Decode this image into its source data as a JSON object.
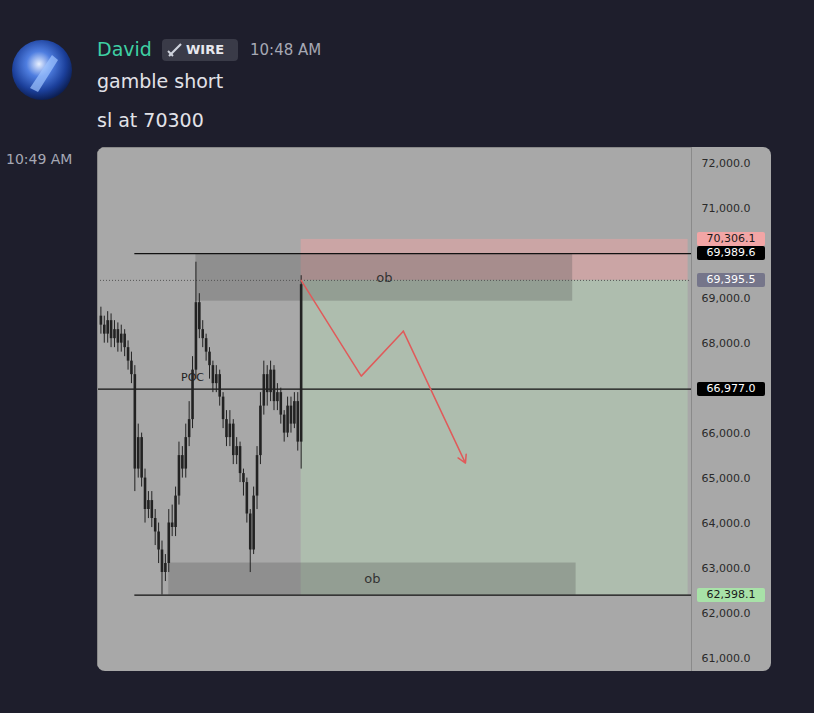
{
  "message": {
    "author": "David",
    "badge": "WIRE",
    "time": "10:48 AM",
    "lines": [
      "gamble short",
      "sl at 70300"
    ],
    "attachment_time": "10:49 AM"
  },
  "chart_data": {
    "type": "candlestick",
    "color": "#222222",
    "xlim": [
      -1,
      174
    ],
    "ylim": [
      60700,
      72350
    ],
    "yticks": [
      {
        "value": 61000,
        "label": "61,000.0"
      },
      {
        "value": 62000,
        "label": "62,000.0"
      },
      {
        "value": 63000,
        "label": "63,000.0"
      },
      {
        "value": 64000,
        "label": "64,000.0"
      },
      {
        "value": 65000,
        "label": "65,000.0"
      },
      {
        "value": 66000,
        "label": "66,000.0"
      },
      {
        "value": 68000,
        "label": "68,000.0"
      },
      {
        "value": 69000,
        "label": "69,000.0"
      },
      {
        "value": 71000,
        "label": "71,000.0"
      },
      {
        "value": 72000,
        "label": "72,000.0"
      }
    ],
    "tick_labels": "y",
    "grid": false,
    "candles": {
      "x": [
        0,
        1,
        2,
        3,
        4,
        5,
        6,
        7,
        8,
        9,
        10,
        11,
        12,
        13,
        14,
        15,
        16,
        17,
        18,
        19,
        20,
        21,
        22,
        23,
        24,
        25,
        26,
        27,
        28,
        29,
        30,
        31,
        32,
        33,
        34,
        35,
        36,
        37,
        38,
        39,
        40,
        41,
        42,
        43,
        44,
        45,
        46,
        47,
        48,
        49,
        50,
        51,
        52,
        53,
        54,
        55,
        56,
        57,
        58,
        59
      ],
      "open": [
        68600,
        68400,
        68200,
        68500,
        68100,
        68300,
        68000,
        68200,
        67900,
        67600,
        67300,
        65200,
        65900,
        65000,
        64300,
        64500,
        64100,
        63800,
        63400,
        62900,
        63100,
        64000,
        63900,
        64600,
        65500,
        65200,
        65900,
        66300,
        67400,
        68900,
        68300,
        68100,
        67800,
        67500,
        67100,
        67300,
        66800,
        66300,
        65900,
        66200,
        65500,
        65700,
        65100,
        64900,
        64200,
        63400,
        64600,
        65500,
        66600,
        67300,
        66900,
        67400,
        66700,
        66900,
        66400,
        66000,
        66600,
        66200,
        66700,
        65800
      ],
      "high": [
        68800,
        68600,
        68700,
        68650,
        68500,
        68450,
        68400,
        68300,
        68050,
        67800,
        67500,
        66200,
        66000,
        65200,
        64700,
        64700,
        64300,
        64000,
        63600,
        63300,
        64300,
        64400,
        64800,
        65800,
        65700,
        66200,
        66700,
        67700,
        69800,
        69100,
        68500,
        68200,
        67900,
        67600,
        67500,
        67400,
        66900,
        66500,
        66500,
        66300,
        65900,
        65800,
        65200,
        65000,
        64300,
        64800,
        65700,
        66900,
        67600,
        67500,
        67600,
        67500,
        67100,
        67000,
        66500,
        66800,
        66800,
        66900,
        66900,
        69500
      ],
      "low": [
        68200,
        68000,
        68000,
        67900,
        67900,
        67800,
        67800,
        67700,
        67400,
        67100,
        64700,
        65000,
        64800,
        64000,
        64100,
        63900,
        63500,
        63100,
        62400,
        62700,
        62900,
        63700,
        63700,
        64400,
        65000,
        65000,
        65700,
        66100,
        67200,
        68100,
        67900,
        67600,
        67200,
        66900,
        66900,
        66600,
        66100,
        65700,
        65700,
        65300,
        65300,
        64900,
        64600,
        64000,
        62900,
        63300,
        64300,
        65300,
        66400,
        66600,
        66700,
        66500,
        66500,
        66200,
        65800,
        65900,
        66000,
        66100,
        65600,
        65200
      ],
      "close": [
        68400,
        68200,
        68500,
        68100,
        68300,
        68000,
        68200,
        67900,
        67600,
        67300,
        65200,
        65900,
        65000,
        64300,
        64500,
        64100,
        63800,
        63400,
        62900,
        63100,
        64000,
        63900,
        64600,
        65500,
        65200,
        65900,
        66300,
        67400,
        68900,
        68300,
        68100,
        67800,
        67500,
        67100,
        67300,
        66800,
        66300,
        65900,
        66200,
        65500,
        65700,
        65100,
        64900,
        64200,
        63400,
        64600,
        65500,
        66600,
        67300,
        66900,
        67400,
        66700,
        66900,
        66400,
        66000,
        66600,
        66200,
        66700,
        65800,
        69300
      ]
    },
    "levels": [
      {
        "value": 69989.6,
        "x1": 10
      },
      {
        "value": 66977.0,
        "x1": -1
      },
      {
        "value": 62398.1,
        "x1": 10
      }
    ],
    "zones": [
      {
        "label": "ob",
        "x1": 28,
        "x2": 139,
        "y1": 68933,
        "y2": 69989.6
      },
      {
        "label": "ob",
        "x1": 20,
        "x2": 140,
        "y1": 62398.1,
        "y2": 63111
      }
    ],
    "position": {
      "x1": 59,
      "x2": 173,
      "stop": 70306.1,
      "entry": 69395.5,
      "target": 62398.1
    },
    "annotations": [
      {
        "text": "POC",
        "x": 27,
        "y": 67150
      }
    ],
    "path": {
      "x": [
        59,
        76.7,
        89.1,
        107.4
      ],
      "y": [
        69395.5,
        67267,
        68267,
        65333
      ],
      "color": "#e05a5a"
    },
    "price_labels": [
      {
        "value": 70306.1,
        "label": "70,306.1",
        "color": "#f2a5a5"
      },
      {
        "value": 69989.6,
        "label": "69,989.6",
        "color": "#000000"
      },
      {
        "value": 69395.5,
        "label": "69,395.5",
        "color": "#75758a"
      },
      {
        "value": 66977.0,
        "label": "66,977.0",
        "color": "#000000"
      },
      {
        "value": 62398.1,
        "label": "62,398.1",
        "color": "#a8e2a8"
      }
    ]
  }
}
